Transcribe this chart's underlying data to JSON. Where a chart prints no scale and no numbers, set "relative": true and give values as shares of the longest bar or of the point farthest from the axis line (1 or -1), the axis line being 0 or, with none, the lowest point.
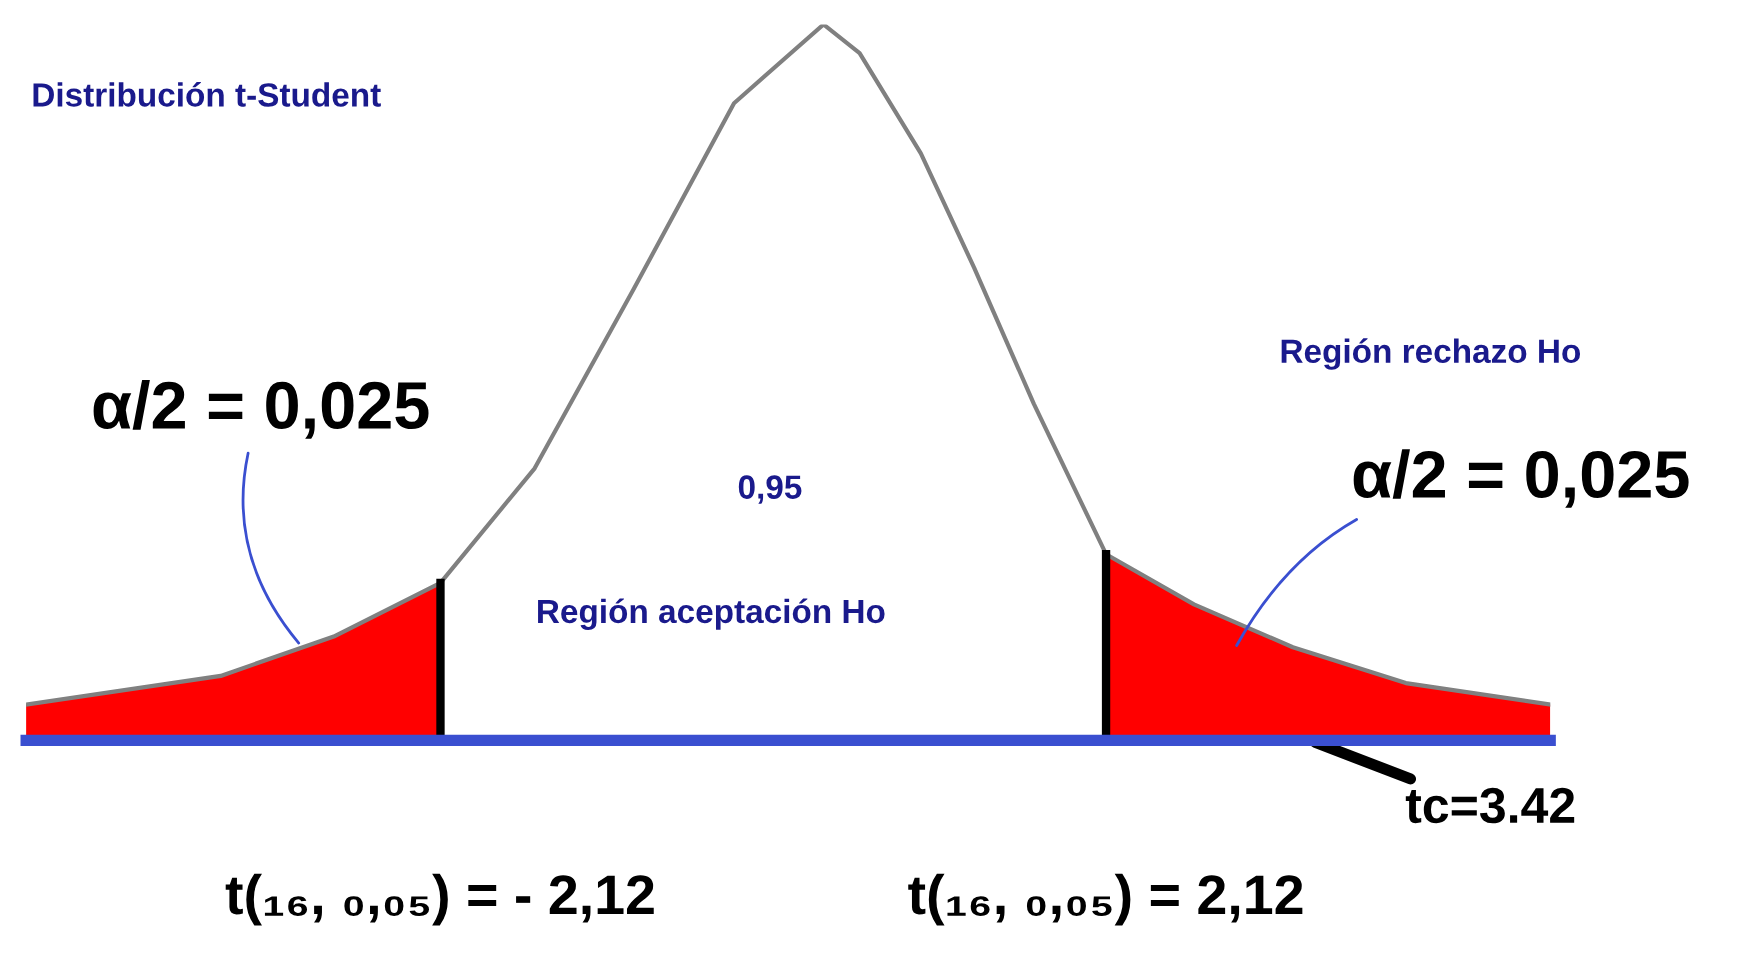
{
  "chart_data": {
    "type": "line",
    "relative": true,
    "title": "Distribución t-Student",
    "xlim": [
      -4.76,
      4.95
    ],
    "xticks": [
      {
        "value": -2.12,
        "label": "t(₁₆, ₀,₀₅) = - 2,12"
      },
      {
        "value": 2.12,
        "label": "t(₁₆, ₀,₀₅) = 2,12"
      }
    ],
    "tick_labels": "x",
    "grid": false,
    "legend": false,
    "series": [
      {
        "type": "area",
        "color": "#ff0000",
        "x": [
          -4.76,
          -3.52,
          -2.8,
          -2.12
        ],
        "values": [
          0.05,
          0.09,
          0.145,
          0.22
        ]
      },
      {
        "type": "area",
        "color": "#ff0000",
        "x": [
          2.12,
          2.68,
          3.31,
          4.03,
          4.95
        ],
        "values": [
          0.26,
          0.19,
          0.13,
          0.08,
          0.05
        ]
      },
      {
        "color": "#808080",
        "x": [
          -4.76,
          -3.52,
          -2.8,
          -2.12,
          -1.52,
          -0.89,
          -0.25,
          0.32,
          0.55,
          0.94,
          1.28,
          1.66,
          2.12,
          2.68,
          3.31,
          4.03,
          4.95
        ],
        "values": [
          0.05,
          0.09,
          0.145,
          0.22,
          0.38,
          0.63,
          0.89,
          1.0,
          0.96,
          0.82,
          0.66,
          0.47,
          0.26,
          0.19,
          0.13,
          0.08,
          0.05
        ]
      }
    ],
    "ref_lines": [
      {
        "axis": "x",
        "value": -2.12,
        "label": null,
        "color": "#000000"
      },
      {
        "axis": "x",
        "value": 2.12,
        "label": null,
        "color": "#000000"
      }
    ],
    "annotations": [
      {
        "text": "α/2 = 0,025",
        "x": -3.0,
        "y": 0.13
      },
      "α/2 = 0,025",
      {
        "text": "tc=3.42",
        "x": 3.42,
        "y": 0
      },
      "0,95",
      "Región aceptación Ho",
      "Región rechazo Ho"
    ]
  }
}
